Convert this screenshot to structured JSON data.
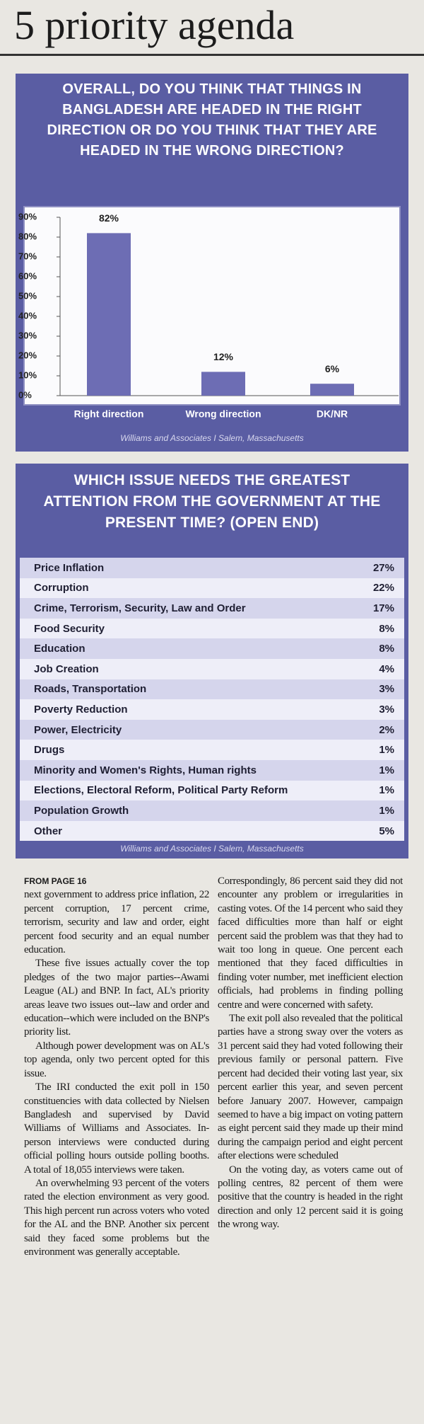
{
  "headline": "5 priority agenda",
  "chart_data": {
    "type": "bar",
    "title": "OVERALL, DO YOU THINK THAT THINGS IN BANGLADESH ARE HEADED IN THE RIGHT DIRECTION OR DO YOU THINK THAT THEY ARE HEADED IN THE WRONG DIRECTION?",
    "categories": [
      "Right direction",
      "Wrong direction",
      "DK/NR"
    ],
    "values": [
      82,
      12,
      6
    ],
    "value_labels": [
      "82%",
      "12%",
      "6%"
    ],
    "color": "#6d6db4",
    "ylim": [
      0,
      90
    ],
    "yticks": [
      {
        "value": 0,
        "label": "0%"
      },
      {
        "value": 10,
        "label": "10%"
      },
      {
        "value": 20,
        "label": "20%"
      },
      {
        "value": 30,
        "label": "30%"
      },
      {
        "value": 40,
        "label": "40%"
      },
      {
        "value": 50,
        "label": "50%"
      },
      {
        "value": 60,
        "label": "60%"
      },
      {
        "value": 70,
        "label": "70%"
      },
      {
        "value": 80,
        "label": "80%"
      },
      {
        "value": 90,
        "label": "90%"
      }
    ],
    "grid": false,
    "source": "Williams and Associates I Salem, Massachusetts"
  },
  "table": {
    "title": "WHICH ISSUE NEEDS THE GREATEST ATTENTION FROM THE GOVERNMENT AT THE PRESENT TIME? (OPEN END)",
    "rows": [
      [
        "Price Inflation",
        "27%"
      ],
      [
        "Corruption",
        "22%"
      ],
      [
        "Crime, Terrorism, Security, Law and Order",
        "17%"
      ],
      [
        "Food Security",
        "8%"
      ],
      [
        "Education",
        "8%"
      ],
      [
        "Job Creation",
        "4%"
      ],
      [
        "Roads, Transportation",
        "3%"
      ],
      [
        "Poverty Reduction",
        "3%"
      ],
      [
        "Power, Electricity",
        "2%"
      ],
      [
        "Drugs",
        "1%"
      ],
      [
        "Minority and Women's Rights, Human rights",
        "1%"
      ],
      [
        "Elections, Electoral Reform, Political Party Reform",
        "1%"
      ],
      [
        "Population Growth",
        "1%"
      ],
      [
        "Other",
        "5%"
      ]
    ],
    "source": "Williams and Associates I Salem, Massachusetts"
  },
  "article": {
    "from_label": "FROM PAGE 16",
    "columns": [
      [
        "next government to address price inflation, 22 percent corruption, 17 percent crime, terrorism, security and law and order, eight percent food security and an equal number education.",
        "These five issues actually cover the top pledges of the two major parties--Awami League (AL) and BNP. In fact, AL's priority areas leave two issues out--law and order and education--which were included on the BNP's priority list.",
        "Although power development was on AL's top agenda, only two percent opted for this issue.",
        "The IRI conducted the exit poll in 150 constituencies with data collected by Nielsen Bangladesh and supervised by David Williams of Williams and Associates. In-person interviews were conducted during official polling hours outside polling booths. A total of 18,055 interviews were taken.",
        "An overwhelming 93 percent of the voters rated the election environment as very good. This high percent run across voters who voted for the AL and the BNP. Another six percent said they faced some problems but the environment was generally acceptable."
      ],
      [
        "Correspondingly, 86 percent said they did not encounter any problem or irregularities in casting votes. Of the 14 percent who said they faced difficulties more than half or eight percent said the problem was that they had to wait too long in queue. One percent each mentioned that they faced difficulties in finding voter number, met inefficient election officials, had problems in finding polling centre and were concerned with safety.",
        "The exit poll also revealed that the political parties have a strong sway over the voters as 31 percent said they had voted following their previous family or personal pattern. Five percent had decided their voting last year, six percent earlier this year, and seven percent before January 2007. However, campaign seemed to have a big impact on voting pattern as eight percent said they made up their mind during the campaign period and eight percent after elections were scheduled",
        "On the voting day, as voters came out of polling centres, 82 percent of them were positive that the country is headed in the right direction and only 12 percent said it is going the wrong way."
      ]
    ]
  }
}
